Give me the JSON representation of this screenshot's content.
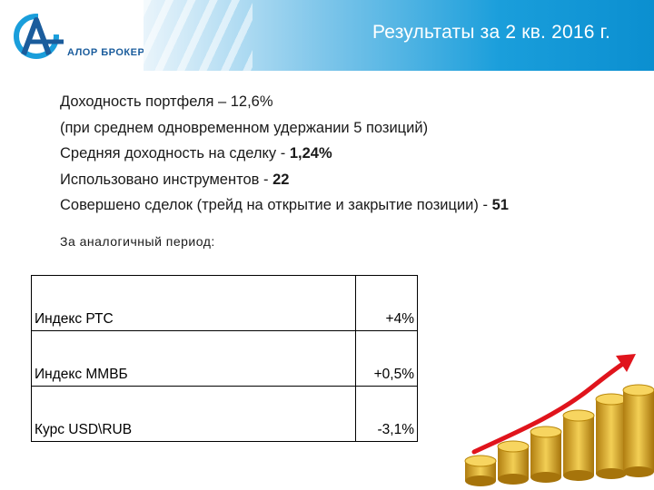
{
  "header": {
    "title": "Результаты за 2 кв. 2016 г.",
    "logo_text": "АЛОР БРОКЕР"
  },
  "summary": [
    {
      "text": "Доходность портфеля – ",
      "value": "12,6%"
    },
    {
      "text": "(при среднем одновременном удержании 5 позиций)",
      "value": ""
    },
    {
      "text": "Средняя доходность на сделку - ",
      "value": "1,24%"
    },
    {
      "text": "Использовано инструментов - ",
      "value": "22"
    },
    {
      "text": "Совершено сделок (трейд на открытие и закрытие позиции) - ",
      "value": "51"
    }
  ],
  "period_label": "За аналогичный период:",
  "benchmarks": [
    {
      "name": "Индекс РТС",
      "value": "+4%"
    },
    {
      "name": "Индекс ММВБ",
      "value": "+0,5%"
    },
    {
      "name": "Курс USD\\RUB",
      "value": "-3,1%"
    }
  ],
  "colors": {
    "brand_blue": "#1a9edb",
    "logo_blue": "#1a5c9c",
    "arrow_red": "#e0141c",
    "coin_gold": "#e6b422"
  }
}
